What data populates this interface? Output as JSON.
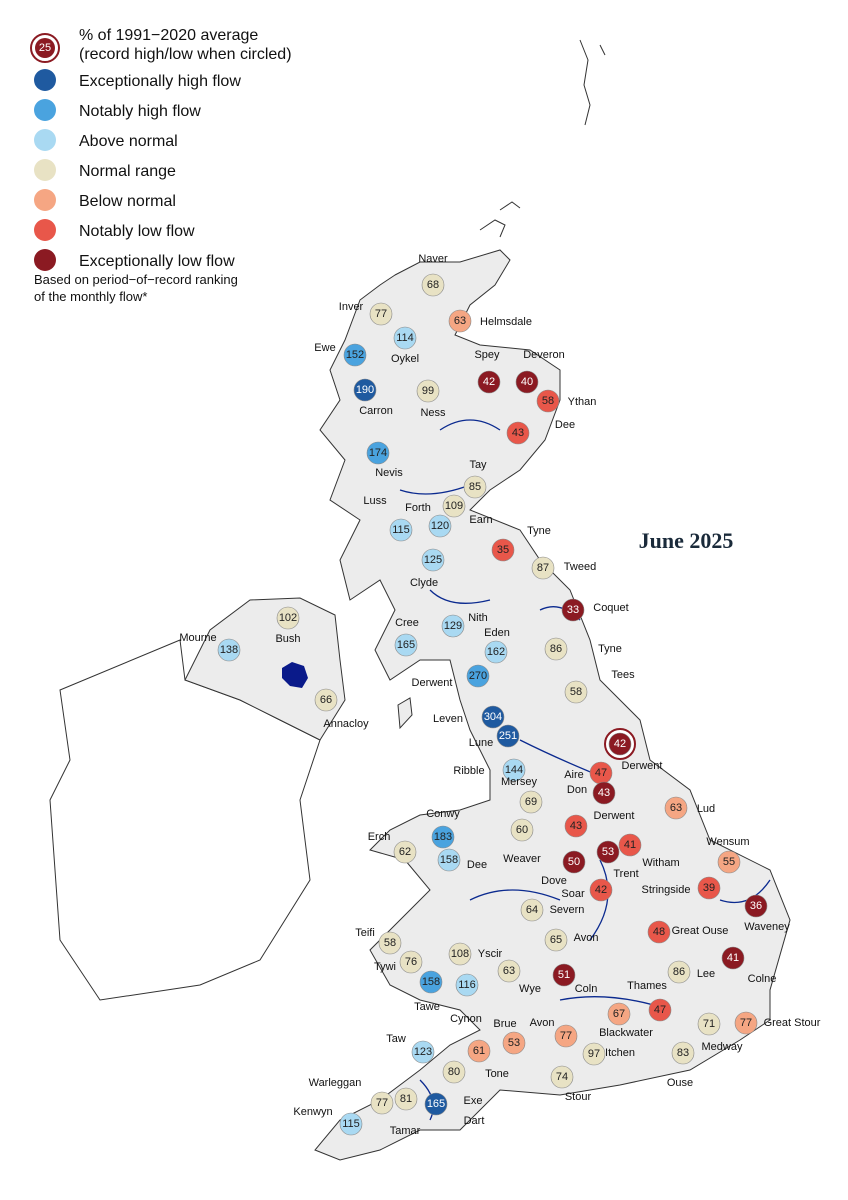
{
  "legend": {
    "record_icon_value": "25",
    "header": [
      "% of 1991−2020 average",
      "(record high/low when circled)"
    ],
    "items": [
      {
        "label": "Exceptionally high flow",
        "color": "#1f5aa0"
      },
      {
        "label": "Notably high flow",
        "color": "#4aa3df"
      },
      {
        "label": "Above normal",
        "color": "#a9d9f2"
      },
      {
        "label": "Normal range",
        "color": "#e8e2c4"
      },
      {
        "label": "Below normal",
        "color": "#f5a683"
      },
      {
        "label": "Notably low flow",
        "color": "#e8574a"
      },
      {
        "label": "Exceptionally low flow",
        "color": "#8b1a22"
      }
    ],
    "note": [
      "Based on period−of−record ranking",
      "of the monthly flow*"
    ]
  },
  "title": "June 2025",
  "stations": [
    {
      "name": "Naver",
      "value": 68,
      "category": "Normal range"
    },
    {
      "name": "Inver",
      "value": 77,
      "category": "Normal range"
    },
    {
      "name": "Helmsdale",
      "value": 63,
      "category": "Below normal"
    },
    {
      "name": "Oykel",
      "value": 114,
      "category": "Above normal"
    },
    {
      "name": "Ewe",
      "value": 152,
      "category": "Notably high flow"
    },
    {
      "name": "Carron",
      "value": 190,
      "category": "Exceptionally high flow"
    },
    {
      "name": "Ness",
      "value": 99,
      "category": "Normal range"
    },
    {
      "name": "Spey",
      "value": 42,
      "category": "Exceptionally low flow"
    },
    {
      "name": "Deveron",
      "value": 40,
      "category": "Exceptionally low flow"
    },
    {
      "name": "Ythan",
      "value": 58,
      "category": "Notably low flow"
    },
    {
      "name": "Dee",
      "value": 43,
      "category": "Notably low flow"
    },
    {
      "name": "Nevis",
      "value": 174,
      "category": "Notably high flow"
    },
    {
      "name": "Tay",
      "value": 85,
      "category": "Normal range"
    },
    {
      "name": "Luss",
      "value": 115,
      "category": "Above normal"
    },
    {
      "name": "Forth",
      "value": 109,
      "category": "Normal range"
    },
    {
      "name": "Earn",
      "value": 120,
      "category": "Above normal"
    },
    {
      "name": "Clyde",
      "value": 125,
      "category": "Above normal"
    },
    {
      "name": "Tyne",
      "value": 35,
      "category": "Notably low flow"
    },
    {
      "name": "Tweed",
      "value": 87,
      "category": "Normal range"
    },
    {
      "name": "Coquet",
      "value": 33,
      "category": "Exceptionally low flow"
    },
    {
      "name": "Nith",
      "value": 129,
      "category": "Above normal"
    },
    {
      "name": "Cree",
      "value": 165,
      "category": "Above normal"
    },
    {
      "name": "Eden",
      "value": 162,
      "category": "Above normal"
    },
    {
      "name": "Tyne",
      "value": 86,
      "category": "Normal range"
    },
    {
      "name": "Tees",
      "value": 58,
      "category": "Normal range"
    },
    {
      "name": "Derwent",
      "value": 270,
      "category": "Notably high flow"
    },
    {
      "name": "Mourne",
      "value": 138,
      "category": "Above normal"
    },
    {
      "name": "Bush",
      "value": 102,
      "category": "Normal range"
    },
    {
      "name": "Annacloy",
      "value": 66,
      "category": "Normal range"
    },
    {
      "name": "Leven",
      "value": 304,
      "category": "Exceptionally high flow"
    },
    {
      "name": "Lune",
      "value": 251,
      "category": "Exceptionally high flow"
    },
    {
      "name": "Derwent",
      "value": 42,
      "category": "Exceptionally low flow",
      "record": true
    },
    {
      "name": "Ribble",
      "value": 144,
      "category": "Above normal"
    },
    {
      "name": "Aire",
      "value": 47,
      "category": "Notably low flow"
    },
    {
      "name": "Don",
      "value": 43,
      "category": "Exceptionally low flow"
    },
    {
      "name": "Mersey",
      "value": 69,
      "category": "Normal range"
    },
    {
      "name": "Lud",
      "value": 63,
      "category": "Below normal"
    },
    {
      "name": "Conwy",
      "value": 183,
      "category": "Notably high flow"
    },
    {
      "name": "Derwent",
      "value": 43,
      "category": "Notably low flow"
    },
    {
      "name": "Erch",
      "value": 62,
      "category": "Normal range"
    },
    {
      "name": "Dee",
      "value": 158,
      "category": "Above normal"
    },
    {
      "name": "Weaver",
      "value": 60,
      "category": "Normal range"
    },
    {
      "name": "Trent",
      "value": 53,
      "category": "Exceptionally low flow"
    },
    {
      "name": "Witham",
      "value": 41,
      "category": "Notably low flow"
    },
    {
      "name": "Wensum",
      "value": 55,
      "category": "Below normal"
    },
    {
      "name": "Dove",
      "value": 50,
      "category": "Exceptionally low flow"
    },
    {
      "name": "Soar",
      "value": 42,
      "category": "Notably low flow"
    },
    {
      "name": "Stringside",
      "value": 39,
      "category": "Notably low flow"
    },
    {
      "name": "Severn",
      "value": 64,
      "category": "Normal range"
    },
    {
      "name": "Waveney",
      "value": 36,
      "category": "Exceptionally low flow"
    },
    {
      "name": "Teifi",
      "value": 58,
      "category": "Normal range"
    },
    {
      "name": "Avon",
      "value": 65,
      "category": "Normal range"
    },
    {
      "name": "Great Ouse",
      "value": 48,
      "category": "Notably low flow"
    },
    {
      "name": "Tywi",
      "value": 76,
      "category": "Normal range"
    },
    {
      "name": "Yscir",
      "value": 108,
      "category": "Normal range"
    },
    {
      "name": "Wye",
      "value": 63,
      "category": "Normal range"
    },
    {
      "name": "Coln",
      "value": 51,
      "category": "Exceptionally low flow"
    },
    {
      "name": "Lee",
      "value": 86,
      "category": "Normal range"
    },
    {
      "name": "Colne",
      "value": 41,
      "category": "Exceptionally low flow"
    },
    {
      "name": "Tawe",
      "value": 158,
      "category": "Notably high flow"
    },
    {
      "name": "Cynon",
      "value": 116,
      "category": "Above normal"
    },
    {
      "name": "Thames",
      "value": 47,
      "category": "Notably low flow"
    },
    {
      "name": "Blackwater",
      "value": 67,
      "category": "Below normal"
    },
    {
      "name": "Medway",
      "value": 71,
      "category": "Normal range"
    },
    {
      "name": "Great Stour",
      "value": 77,
      "category": "Below normal"
    },
    {
      "name": "Brue",
      "value": 53,
      "category": "Below normal"
    },
    {
      "name": "Avon",
      "value": 77,
      "category": "Below normal"
    },
    {
      "name": "Taw",
      "value": 123,
      "category": "Above normal"
    },
    {
      "name": "Tone",
      "value": 61,
      "category": "Below normal"
    },
    {
      "name": "Itchen",
      "value": 97,
      "category": "Normal range"
    },
    {
      "name": "Ouse",
      "value": 83,
      "category": "Normal range"
    },
    {
      "name": "Exe",
      "value": 80,
      "category": "Normal range"
    },
    {
      "name": "Stour",
      "value": 74,
      "category": "Normal range"
    },
    {
      "name": "Warleggan",
      "value": 77,
      "category": "Normal range"
    },
    {
      "name": "Tamar",
      "value": 81,
      "category": "Normal range"
    },
    {
      "name": "Dart",
      "value": 165,
      "category": "Exceptionally high flow"
    },
    {
      "name": "Kenwyn",
      "value": 115,
      "category": "Above normal"
    }
  ]
}
